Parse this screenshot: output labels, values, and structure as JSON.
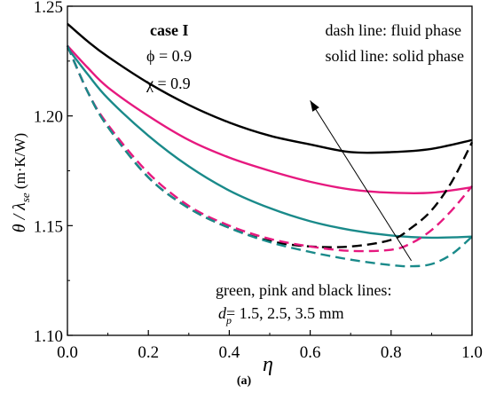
{
  "chart_data": {
    "type": "line",
    "xlabel": "η",
    "ylabel": {
      "main": "θ / λ",
      "sub": "se",
      "units": " (m·K/W)"
    },
    "xlim": [
      0.0,
      1.0
    ],
    "ylim": [
      1.1,
      1.25
    ],
    "xticks": [
      "0.0",
      "0.2",
      "0.4",
      "0.6",
      "0.8",
      "1.0"
    ],
    "yticks": [
      "1.10",
      "1.15",
      "1.20",
      "1.25"
    ],
    "xtick_values": [
      0.0,
      0.2,
      0.4,
      0.6,
      0.8,
      1.0
    ],
    "ytick_values": [
      1.1,
      1.15,
      1.2,
      1.25
    ],
    "grid": false,
    "annotations": {
      "case": "case I",
      "phi": "ϕ = 0.9",
      "chi": "χ = 0.9",
      "dash_note": "dash line: fluid phase",
      "solid_note": "solid line: solid phase",
      "lines_note": "green, pink and black lines:",
      "dp_sym": "d",
      "dp_sub": "p",
      "dp_values": "= 1.5, 2.5, 3.5 mm"
    },
    "series": [
      {
        "color": "#000000",
        "dash": false,
        "x": [
          0.0,
          0.05,
          0.1,
          0.2,
          0.3,
          0.4,
          0.5,
          0.6,
          0.7,
          0.8,
          0.9,
          1.0
        ],
        "y": [
          1.242,
          1.234,
          1.227,
          1.215,
          1.205,
          1.197,
          1.191,
          1.187,
          1.1835,
          1.1835,
          1.185,
          1.189
        ]
      },
      {
        "color": "#e6197f",
        "dash": false,
        "x": [
          0.0,
          0.05,
          0.1,
          0.2,
          0.3,
          0.4,
          0.5,
          0.6,
          0.7,
          0.8,
          0.9,
          1.0
        ],
        "y": [
          1.232,
          1.222,
          1.213,
          1.2,
          1.189,
          1.181,
          1.175,
          1.17,
          1.1665,
          1.165,
          1.165,
          1.1675
        ]
      },
      {
        "color": "#1a8a8a",
        "dash": false,
        "x": [
          0.0,
          0.05,
          0.1,
          0.2,
          0.3,
          0.4,
          0.5,
          0.6,
          0.7,
          0.8,
          0.9,
          1.0
        ],
        "y": [
          1.231,
          1.219,
          1.208,
          1.191,
          1.177,
          1.166,
          1.158,
          1.152,
          1.148,
          1.1455,
          1.1445,
          1.145
        ]
      },
      {
        "color": "#000000",
        "dash": true,
        "x": [
          0.0,
          0.05,
          0.1,
          0.2,
          0.3,
          0.4,
          0.5,
          0.6,
          0.7,
          0.8,
          0.85,
          0.9,
          0.95,
          1.0
        ],
        "y": [
          1.232,
          1.211,
          1.195,
          1.172,
          1.158,
          1.149,
          1.143,
          1.1405,
          1.1405,
          1.1435,
          1.149,
          1.157,
          1.17,
          1.188
        ]
      },
      {
        "color": "#e6197f",
        "dash": true,
        "x": [
          0.0,
          0.05,
          0.1,
          0.2,
          0.3,
          0.4,
          0.5,
          0.6,
          0.7,
          0.8,
          0.85,
          0.9,
          0.95,
          1.0
        ],
        "y": [
          1.232,
          1.211,
          1.196,
          1.174,
          1.159,
          1.15,
          1.144,
          1.1405,
          1.1385,
          1.139,
          1.142,
          1.148,
          1.157,
          1.168
        ]
      },
      {
        "color": "#1a8a8a",
        "dash": true,
        "x": [
          0.0,
          0.05,
          0.1,
          0.2,
          0.3,
          0.4,
          0.5,
          0.6,
          0.7,
          0.8,
          0.85,
          0.9,
          0.95,
          1.0
        ],
        "y": [
          1.232,
          1.211,
          1.195,
          1.172,
          1.158,
          1.149,
          1.1425,
          1.138,
          1.1345,
          1.132,
          1.1315,
          1.1325,
          1.137,
          1.145
        ]
      }
    ],
    "arrow": {
      "from": [
        0.85,
        1.134
      ],
      "to": [
        0.6,
        1.207
      ]
    }
  },
  "caption": {
    "text": "(a)"
  }
}
